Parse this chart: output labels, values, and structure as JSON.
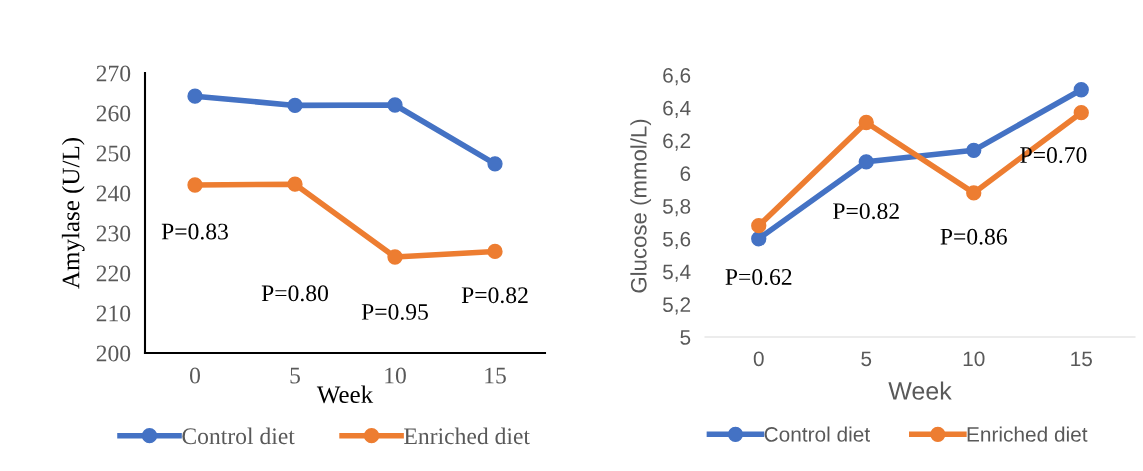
{
  "chart_data": [
    {
      "type": "line",
      "xlabel": "Week",
      "ylabel": "Amylase (U/L)",
      "categories": [
        "0",
        "5",
        "10",
        "15"
      ],
      "series": [
        {
          "name": "Control diet",
          "color": "#4472c4",
          "values": [
            264.2,
            261.9,
            262.0,
            247.3
          ]
        },
        {
          "name": "Enriched diet",
          "color": "#ed7d31",
          "values": [
            242.0,
            242.2,
            224.0,
            225.4
          ]
        }
      ],
      "ylim": [
        200,
        270
      ],
      "yticks": [
        200,
        210,
        220,
        230,
        240,
        250,
        260,
        270
      ],
      "grid": false,
      "legend": "bottom",
      "marker": "circle",
      "line_style": "solid",
      "annotations": [
        "P=0.83",
        "P=0.80",
        "P=0.95",
        "P=0.82"
      ]
    },
    {
      "type": "line",
      "xlabel": "Week",
      "ylabel": "Glucose (mmol/L)",
      "categories": [
        "0",
        "5",
        "10",
        "15"
      ],
      "series": [
        {
          "name": "Control diet",
          "color": "#4472c4",
          "values": [
            5.6,
            6.07,
            6.14,
            6.51
          ]
        },
        {
          "name": "Enriched diet",
          "color": "#ed7d31",
          "values": [
            5.68,
            6.31,
            5.88,
            6.37
          ]
        }
      ],
      "ylim": [
        5,
        6.6
      ],
      "yticks": [
        5,
        {
          "value": 5.2,
          "label": "5,2"
        },
        {
          "value": 5.4,
          "label": "5,4"
        },
        {
          "value": 5.6,
          "label": "5,6"
        },
        {
          "value": 5.8,
          "label": "5,8"
        },
        6,
        {
          "value": 6.2,
          "label": "6,2"
        },
        {
          "value": 6.4,
          "label": "6,4"
        },
        {
          "value": 6.6,
          "label": "6,6"
        }
      ],
      "grid": false,
      "legend": "bottom",
      "marker": "circle",
      "line_style": "solid",
      "annotations": [
        "P=0.62",
        "P=0.82",
        "P=0.86",
        "P=0.70"
      ]
    }
  ]
}
